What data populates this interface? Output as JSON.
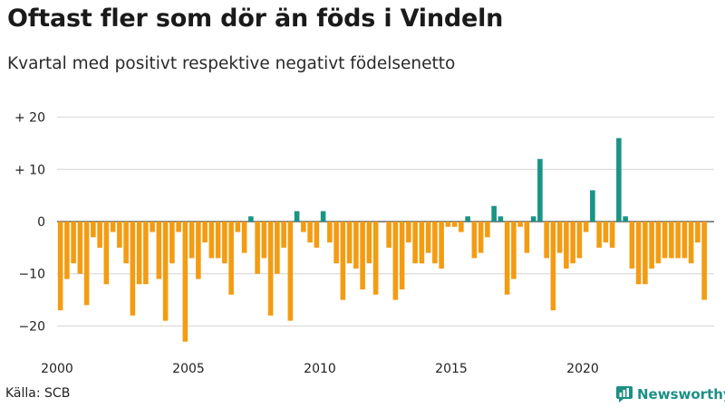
{
  "title": "Oftast fler som dör än föds i Vindeln",
  "subtitle": "Kvartal med positivt respektive negativt födelsenetto",
  "source": "Källa: SCB",
  "brand": "Newsworthy",
  "colors": {
    "negative": "#f39c12",
    "positive": "#1a9485",
    "grid": "#d4d4d4",
    "brand": "#1d8f84"
  },
  "chart_data": {
    "type": "bar",
    "title": "Oftast fler som dör än föds i Vindeln",
    "subtitle": "Kvartal med positivt respektive negativt födelsenetto",
    "xlabel": "",
    "ylabel": "",
    "ylim": [
      -25,
      22
    ],
    "yticks": [
      20,
      10,
      0,
      -10,
      -20
    ],
    "ytick_labels": [
      "+ 20",
      "+ 10",
      "0",
      "−10",
      "−20"
    ],
    "xticks": [
      2000,
      2005,
      2010,
      2015,
      2020
    ],
    "xtick_labels": [
      "2000",
      "2005",
      "2010",
      "2015",
      "2020"
    ],
    "x_start": 2000,
    "x_step": 0.25,
    "grid": true,
    "values": [
      -17,
      -11,
      -8,
      -10,
      -16,
      -3,
      -5,
      -12,
      -2,
      -5,
      -8,
      -18,
      -12,
      -12,
      -2,
      -11,
      -19,
      -8,
      -2,
      -23,
      -7,
      -11,
      -4,
      -7,
      -7,
      -8,
      -14,
      -2,
      -6,
      1,
      -10,
      -7,
      -18,
      -10,
      -5,
      -19,
      2,
      -2,
      -4,
      -5,
      2,
      -4,
      -8,
      -15,
      -8,
      -9,
      -13,
      -8,
      -14,
      0,
      -5,
      -15,
      -13,
      -4,
      -8,
      -8,
      -6,
      -8,
      -9,
      -1,
      -1,
      -2,
      1,
      -7,
      -6,
      -3,
      3,
      1,
      -14,
      -11,
      -1,
      -6,
      1,
      12,
      -7,
      -17,
      -6,
      -9,
      -8,
      -7,
      -2,
      6,
      -5,
      -4,
      -5,
      16,
      1,
      -9,
      -12,
      -12,
      -9,
      -8,
      -7,
      -7,
      -7,
      -7,
      -8,
      -4,
      -15
    ]
  }
}
